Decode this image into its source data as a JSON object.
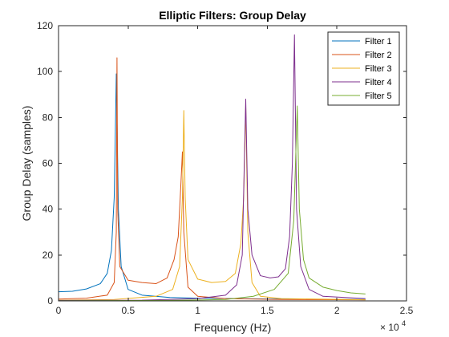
{
  "chart_data": {
    "type": "line",
    "title": "Elliptic Filters: Group Delay",
    "xlabel": "Frequency (Hz)",
    "ylabel": "Group Delay (samples)",
    "xlim": [
      0,
      25000
    ],
    "ylim": [
      0,
      120
    ],
    "x_ticks": [
      0,
      5000,
      10000,
      15000,
      20000,
      25000
    ],
    "x_tick_labels": [
      "0",
      "0.5",
      "1",
      "1.5",
      "2",
      "2.5"
    ],
    "x_exponent_base": "× 10",
    "x_exponent_power": "4",
    "y_ticks": [
      0,
      20,
      40,
      60,
      80,
      100,
      120
    ],
    "y_tick_labels": [
      "0",
      "20",
      "40",
      "60",
      "80",
      "100",
      "120"
    ],
    "grid": false,
    "legend_position": "top-right",
    "series": [
      {
        "name": "Filter 1",
        "color": "#0072BD",
        "points": [
          [
            0,
            4
          ],
          [
            1000,
            4.2
          ],
          [
            2000,
            5.2
          ],
          [
            3000,
            7.5
          ],
          [
            3500,
            12
          ],
          [
            3800,
            22
          ],
          [
            4000,
            45
          ],
          [
            4100,
            80
          ],
          [
            4150,
            99
          ],
          [
            4200,
            80
          ],
          [
            4300,
            40
          ],
          [
            4500,
            15
          ],
          [
            5000,
            5
          ],
          [
            6000,
            2.5
          ],
          [
            8000,
            1.5
          ],
          [
            10000,
            1.2
          ],
          [
            14000,
            0.9
          ],
          [
            18000,
            0.7
          ],
          [
            22050,
            0.6
          ]
        ]
      },
      {
        "name": "Filter 2",
        "color": "#D95319",
        "points": [
          [
            0,
            0.8
          ],
          [
            2000,
            1.2
          ],
          [
            3500,
            2.5
          ],
          [
            4000,
            8
          ],
          [
            4150,
            30
          ],
          [
            4200,
            106
          ],
          [
            4250,
            40
          ],
          [
            4400,
            15
          ],
          [
            5000,
            9
          ],
          [
            6000,
            8
          ],
          [
            7000,
            7.5
          ],
          [
            7800,
            10
          ],
          [
            8300,
            18
          ],
          [
            8600,
            28
          ],
          [
            8800,
            52
          ],
          [
            8900,
            65
          ],
          [
            9000,
            30
          ],
          [
            9300,
            6
          ],
          [
            10000,
            2
          ],
          [
            12000,
            1
          ],
          [
            16000,
            0.6
          ],
          [
            22050,
            0.5
          ]
        ]
      },
      {
        "name": "Filter 3",
        "color": "#EDB120",
        "points": [
          [
            0,
            0.3
          ],
          [
            4000,
            0.6
          ],
          [
            7000,
            2
          ],
          [
            8200,
            5
          ],
          [
            8700,
            15
          ],
          [
            8900,
            45
          ],
          [
            9000,
            83
          ],
          [
            9100,
            45
          ],
          [
            9300,
            18
          ],
          [
            10000,
            9.5
          ],
          [
            11000,
            8
          ],
          [
            12000,
            8.5
          ],
          [
            12700,
            12
          ],
          [
            13100,
            25
          ],
          [
            13300,
            45
          ],
          [
            13450,
            85
          ],
          [
            13600,
            30
          ],
          [
            13900,
            8
          ],
          [
            14500,
            2
          ],
          [
            16000,
            1
          ],
          [
            22050,
            0.5
          ]
        ]
      },
      {
        "name": "Filter 4",
        "color": "#7E2F8E",
        "points": [
          [
            0,
            0.2
          ],
          [
            6000,
            0.3
          ],
          [
            10000,
            1
          ],
          [
            12000,
            2.5
          ],
          [
            12800,
            7
          ],
          [
            13200,
            20
          ],
          [
            13450,
            88
          ],
          [
            13600,
            40
          ],
          [
            13900,
            20
          ],
          [
            14500,
            11
          ],
          [
            15200,
            10
          ],
          [
            15800,
            10.5
          ],
          [
            16300,
            14
          ],
          [
            16600,
            28
          ],
          [
            16800,
            60
          ],
          [
            16950,
            116
          ],
          [
            17100,
            40
          ],
          [
            17400,
            15
          ],
          [
            18000,
            5
          ],
          [
            19000,
            2
          ],
          [
            22050,
            1
          ]
        ]
      },
      {
        "name": "Filter 5",
        "color": "#77AC30",
        "points": [
          [
            0,
            0.1
          ],
          [
            8000,
            0.2
          ],
          [
            12000,
            0.6
          ],
          [
            14000,
            2
          ],
          [
            15500,
            5
          ],
          [
            16500,
            12
          ],
          [
            16900,
            35
          ],
          [
            17150,
            85
          ],
          [
            17300,
            40
          ],
          [
            17600,
            18
          ],
          [
            18000,
            10
          ],
          [
            19000,
            6
          ],
          [
            20000,
            4.5
          ],
          [
            21000,
            3.5
          ],
          [
            22050,
            3
          ]
        ]
      }
    ]
  }
}
